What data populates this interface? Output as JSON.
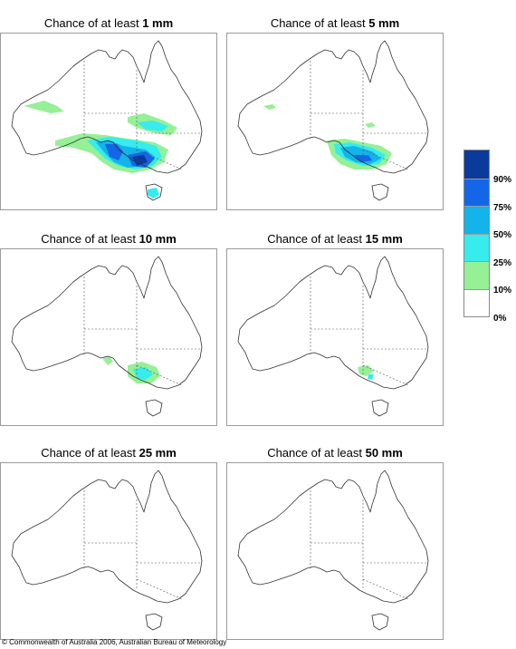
{
  "panels": [
    {
      "prefix": "Chance of at least ",
      "amount": "1 mm"
    },
    {
      "prefix": "Chance of at least ",
      "amount": "5 mm"
    },
    {
      "prefix": "Chance of at least ",
      "amount": "10 mm"
    },
    {
      "prefix": "Chance of at least ",
      "amount": "15 mm"
    },
    {
      "prefix": "Chance of at least ",
      "amount": "25 mm"
    },
    {
      "prefix": "Chance of at least ",
      "amount": "50 mm"
    }
  ],
  "legend": {
    "labels": [
      "90%",
      "75%",
      "50%",
      "25%",
      "10%",
      "0%"
    ],
    "colors": [
      "#0a3a9c",
      "#1466e8",
      "#12b4ea",
      "#36ecec",
      "#96f096",
      "#ffffff"
    ]
  },
  "copyright": "© Commonwealth of Australia 2006, Australian Bureau of Meteorology"
}
